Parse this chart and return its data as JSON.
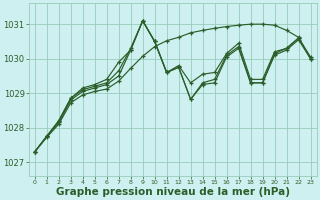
{
  "background_color": "#cff0f0",
  "grid_color": "#99ccbb",
  "line_color": "#2a5e2a",
  "xlabel": "Graphe pression niveau de la mer (hPa)",
  "xlabel_fontsize": 7.5,
  "xlim": [
    -0.5,
    23.5
  ],
  "ylim": [
    1026.6,
    1031.6
  ],
  "yticks": [
    1027,
    1028,
    1029,
    1030,
    1031
  ],
  "xticks": [
    0,
    1,
    2,
    3,
    4,
    5,
    6,
    7,
    8,
    9,
    10,
    11,
    12,
    13,
    14,
    15,
    16,
    17,
    18,
    19,
    20,
    21,
    22,
    23
  ],
  "series": [
    [
      1027.3,
      1027.75,
      1028.15,
      1028.8,
      1029.05,
      1029.15,
      1029.25,
      1029.5,
      1030.25,
      1031.1,
      1030.5,
      1029.6,
      1029.75,
      1028.82,
      1029.25,
      1029.3,
      1030.05,
      1030.3,
      1029.3,
      1029.3,
      1030.1,
      1030.25,
      1030.55,
      1030.0
    ],
    [
      1027.3,
      1027.75,
      1028.2,
      1028.85,
      1029.1,
      1029.2,
      1029.3,
      1029.65,
      1030.3,
      1031.1,
      1030.5,
      1029.6,
      1029.75,
      1028.82,
      1029.3,
      1029.4,
      1030.1,
      1030.35,
      1029.3,
      1029.3,
      1030.15,
      1030.3,
      1030.6,
      1030.05
    ],
    [
      1027.3,
      1027.75,
      1028.2,
      1028.85,
      1029.15,
      1029.25,
      1029.4,
      1029.9,
      1030.25,
      1031.1,
      1030.5,
      1029.6,
      1029.8,
      1029.3,
      1029.55,
      1029.6,
      1030.15,
      1030.45,
      1029.4,
      1029.4,
      1030.2,
      1030.3,
      1030.6,
      1030.0
    ],
    [
      1027.3,
      1027.72,
      1028.1,
      1028.72,
      1028.95,
      1029.05,
      1029.12,
      1029.35,
      1029.72,
      1030.07,
      1030.35,
      1030.52,
      1030.62,
      1030.75,
      1030.82,
      1030.88,
      1030.93,
      1030.97,
      1031.0,
      1031.0,
      1030.97,
      1030.82,
      1030.62,
      1030.0
    ]
  ]
}
